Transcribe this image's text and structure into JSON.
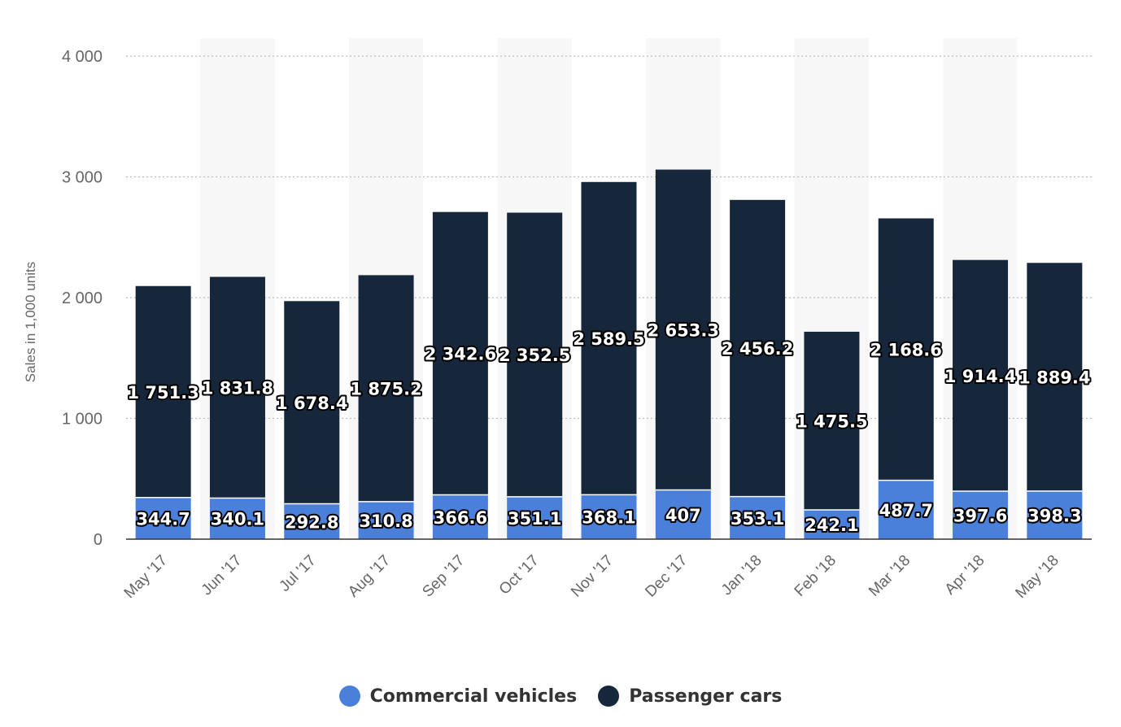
{
  "chart_data": {
    "type": "bar",
    "stacked": true,
    "categories": [
      "May '17",
      "Jun '17",
      "Jul '17",
      "Aug '17",
      "Sep '17",
      "Oct '17",
      "Nov '17",
      "Dec '17",
      "Jan '18",
      "Feb '18",
      "Mar '18",
      "Apr '18",
      "May '18"
    ],
    "series": [
      {
        "name": "Commercial vehicles",
        "color": "#4a80d9",
        "values": [
          344.7,
          340.1,
          292.8,
          310.8,
          366.6,
          351.1,
          368.1,
          407,
          353.1,
          242.1,
          487.7,
          397.6,
          398.3
        ],
        "labels": [
          "344.7",
          "340.1",
          "292.8",
          "310.8",
          "366.6",
          "351.1",
          "368.1",
          "407",
          "353.1",
          "242.1",
          "487.7",
          "397.6",
          "398.3"
        ]
      },
      {
        "name": "Passenger cars",
        "color": "#17273b",
        "values": [
          1751.3,
          1831.8,
          1678.4,
          1875.2,
          2342.6,
          2352.5,
          2589.5,
          2653.3,
          2456.2,
          1475.5,
          2168.6,
          1914.4,
          1889.4
        ],
        "labels": [
          "1 751.3",
          "1 831.8",
          "1 678.4",
          "1 875.2",
          "2 342.6",
          "2 352.5",
          "2 589.5",
          "2 653.3",
          "2 456.2",
          "1 475.5",
          "2 168.6",
          "1 914.4",
          "1 889.4"
        ]
      }
    ],
    "ylabel": "Sales in 1,000 units",
    "xlabel": "",
    "ylim": [
      0,
      4000
    ],
    "yticks": [
      0,
      1000,
      2000,
      3000,
      4000
    ],
    "ytick_labels": [
      "0",
      "1 000",
      "2 000",
      "3 000",
      "4 000"
    ],
    "grid": true,
    "legend_position": "bottom"
  }
}
